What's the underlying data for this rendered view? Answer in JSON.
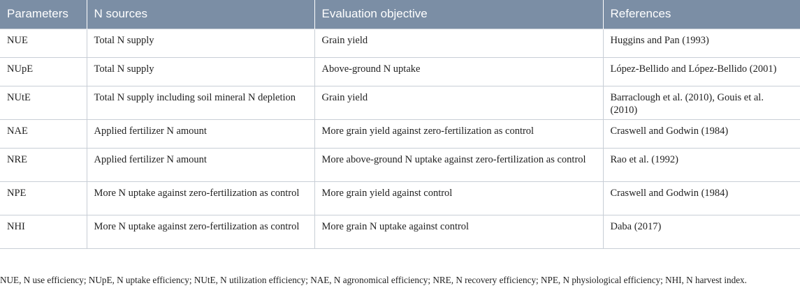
{
  "table": {
    "headers": [
      "Parameters",
      "N sources",
      "Evaluation objective",
      "References"
    ],
    "rows": [
      [
        "NUE",
        "Total N supply",
        "Grain yield",
        "Huggins and Pan (1993)"
      ],
      [
        "NUpE",
        "Total N supply",
        "Above-ground N uptake",
        "López-Bellido and López-Bellido (2001)"
      ],
      [
        "NUtE",
        "Total N supply including soil mineral N depletion",
        "Grain yield",
        "Barraclough et al. (2010), Gouis et al. (2010)"
      ],
      [
        "NAE",
        "Applied fertilizer N amount",
        "More grain yield against zero-fertilization as control",
        "Craswell and Godwin (1984)"
      ],
      [
        "NRE",
        "Applied fertilizer N amount",
        "More above-ground N uptake against zero-fertilization as control",
        "Rao et al. (1992)"
      ],
      [
        "NPE",
        "More N uptake against zero-fertilization as control",
        "More grain yield against control",
        "Craswell and Godwin (1984)"
      ],
      [
        "NHI",
        "More N uptake against zero-fertilization as control",
        "More grain N uptake against control",
        "Daba (2017)"
      ]
    ]
  },
  "footnote": "NUE, N use efficiency; NUpE, N uptake efficiency; NUtE, N utilization efficiency; NAE, N agronomical efficiency; NRE, N recovery efficiency; NPE, N physiological efficiency; NHI, N harvest index."
}
